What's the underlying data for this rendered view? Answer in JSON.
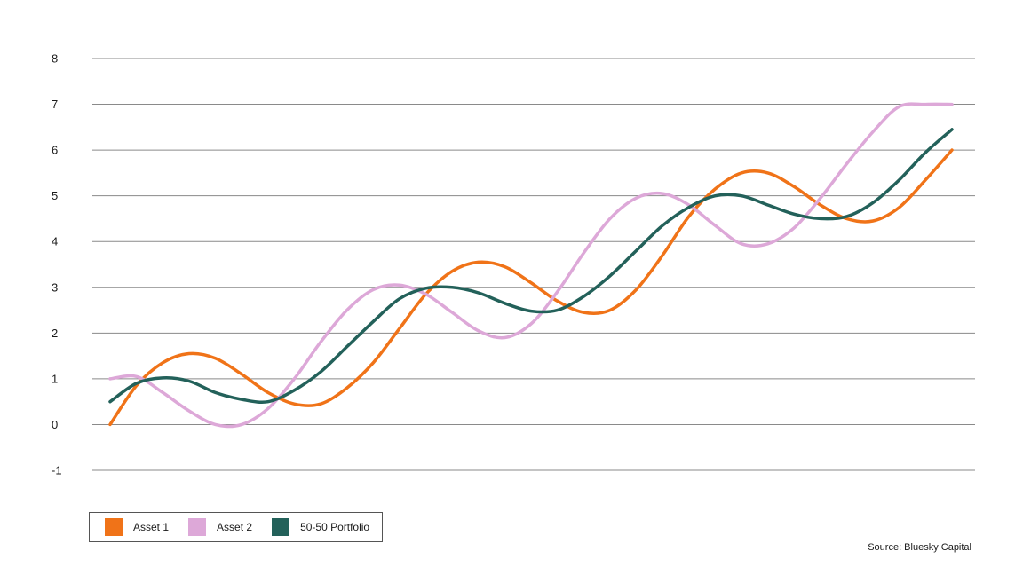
{
  "chart_data": {
    "type": "line",
    "title": "",
    "xlabel": "",
    "ylabel": "",
    "ylim": [
      -1,
      8
    ],
    "yticks": [
      8,
      7,
      6,
      5,
      4,
      3,
      2,
      1,
      0,
      -1
    ],
    "yticks_text": [
      "8",
      "7",
      "6",
      "5",
      "4",
      "3",
      "2",
      "1",
      "0",
      "-1"
    ],
    "grid": true,
    "legend": "bottom-left",
    "x": [
      0,
      0.5,
      1,
      1.5,
      2,
      2.5,
      3,
      3.5,
      4,
      4.5,
      5,
      5.5,
      6,
      6.5,
      7,
      7.5,
      8,
      8.5,
      9,
      9.5,
      10,
      10.5,
      11,
      11.5,
      12,
      12.5,
      13,
      13.5,
      14,
      14.5,
      15,
      15.5,
      16
    ],
    "series": [
      {
        "name": "Asset 1",
        "color": "#f07318",
        "values": [
          0.0,
          0.85,
          1.35,
          1.55,
          1.45,
          1.1,
          0.7,
          0.45,
          0.45,
          0.8,
          1.35,
          2.1,
          2.85,
          3.35,
          3.55,
          3.45,
          3.1,
          2.7,
          2.45,
          2.5,
          2.95,
          3.7,
          4.55,
          5.15,
          5.5,
          5.5,
          5.2,
          4.8,
          4.5,
          4.45,
          4.75,
          5.35,
          6.0
        ]
      },
      {
        "name": "Asset 2",
        "color": "#dda8d8",
        "values": [
          1.0,
          1.05,
          0.7,
          0.3,
          0.0,
          0.0,
          0.35,
          1.0,
          1.8,
          2.5,
          2.95,
          3.05,
          2.85,
          2.45,
          2.05,
          1.9,
          2.2,
          2.9,
          3.75,
          4.5,
          4.95,
          5.05,
          4.8,
          4.35,
          3.95,
          3.95,
          4.3,
          4.95,
          5.7,
          6.4,
          6.95,
          7.0,
          7.0
        ]
      },
      {
        "name": "50-50 Portfolio",
        "color": "#23615a",
        "values": [
          0.5,
          0.9,
          1.02,
          0.95,
          0.7,
          0.55,
          0.5,
          0.75,
          1.15,
          1.7,
          2.25,
          2.75,
          2.98,
          3.0,
          2.88,
          2.65,
          2.48,
          2.5,
          2.8,
          3.25,
          3.8,
          4.35,
          4.75,
          5.0,
          5.0,
          4.8,
          4.6,
          4.5,
          4.55,
          4.85,
          5.35,
          5.95,
          6.45
        ]
      }
    ]
  },
  "legend": {
    "items": [
      {
        "label": "Asset 1",
        "color": "#f07318"
      },
      {
        "label": "Asset 2",
        "color": "#dda8d8"
      },
      {
        "label": "50-50 Portfolio",
        "color": "#23615a"
      }
    ]
  },
  "source": "Source: Bluesky Capital"
}
